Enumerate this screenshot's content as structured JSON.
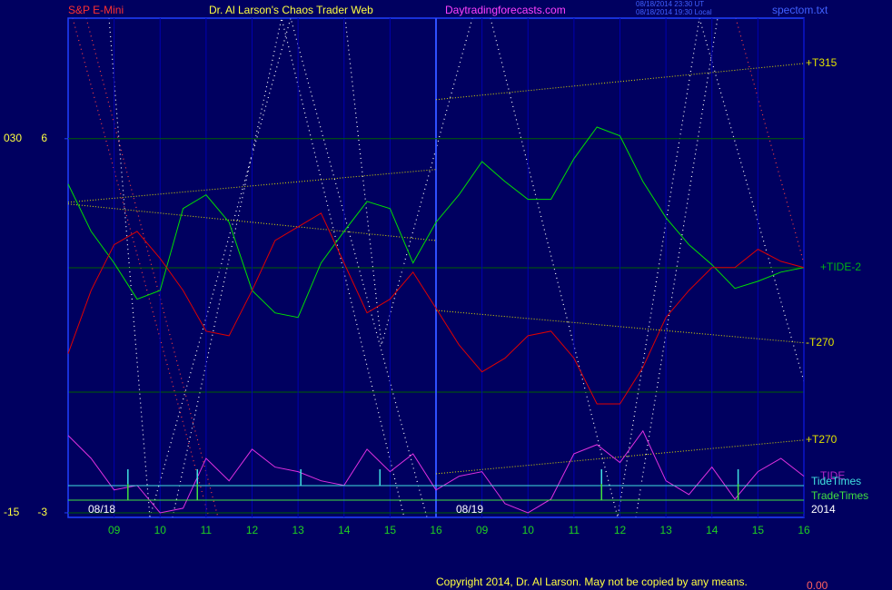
{
  "chart_data": {
    "type": "line",
    "header": {
      "symbol": "S&P E-Mini",
      "title": "Dr. Al Larson's Chaos Trader Web",
      "site": "Daytradingforecasts.com",
      "time_ut": "08/18/2014 23:30 UT",
      "time_local": "08/18/2014 19:30 Local",
      "file": "spectom.txt"
    },
    "copyright": "Copyright 2014, Dr. Al Larson. May not be copied by any means.",
    "footer_value": "0.00",
    "day_labels": [
      {
        "x": 0,
        "label": "08/18"
      },
      {
        "x": 8,
        "label": "08/19"
      }
    ],
    "year": "2014",
    "xlim": [
      0,
      16
    ],
    "xticks": [
      {
        "value": 1,
        "label": "09"
      },
      {
        "value": 2,
        "label": "10"
      },
      {
        "value": 3,
        "label": "11"
      },
      {
        "value": 4,
        "label": "12"
      },
      {
        "value": 5,
        "label": "13"
      },
      {
        "value": 6,
        "label": "14"
      },
      {
        "value": 7,
        "label": "15"
      },
      {
        "value": 8,
        "label": "16"
      },
      {
        "value": 9,
        "label": "09"
      },
      {
        "value": 10,
        "label": "10"
      },
      {
        "value": 11,
        "label": "11"
      },
      {
        "value": 12,
        "label": "12"
      },
      {
        "value": 13,
        "label": "13"
      },
      {
        "value": 14,
        "label": "14"
      },
      {
        "value": 15,
        "label": "15"
      },
      {
        "value": 16,
        "label": "16"
      }
    ],
    "ylim": [
      -3.11,
      8.9
    ],
    "yticks": [
      -3,
      6
    ],
    "y2lim": [
      -15.55,
      44.5
    ],
    "y2ticks": [
      -15,
      {
        "value": 30,
        "label": "030"
      }
    ],
    "grid": true,
    "x": [
      0,
      0.5,
      1,
      1.5,
      2,
      2.5,
      3,
      3.5,
      4,
      4.5,
      5,
      5.5,
      6,
      6.5,
      7,
      7.5,
      8,
      8.5,
      9,
      9.5,
      10,
      10.5,
      11,
      11.5,
      12,
      12.5,
      13,
      13.5,
      14,
      14.5,
      15,
      15.5,
      16
    ],
    "series": [
      {
        "name": "+TIDE-2",
        "color": "#00e000",
        "values": [
          4.91,
          3.77,
          3.01,
          2.14,
          2.35,
          4.32,
          4.65,
          3.99,
          2.35,
          1.81,
          1.7,
          3.01,
          3.77,
          4.49,
          4.32,
          3.01,
          3.99,
          4.65,
          5.45,
          4.97,
          4.54,
          4.54,
          5.52,
          6.28,
          6.07,
          4.97,
          4.1,
          3.45,
          2.97,
          2.4,
          2.57,
          2.79,
          2.9
        ]
      },
      {
        "color": "#e00000",
        "values": [
          0.83,
          2.35,
          3.45,
          3.77,
          3.12,
          2.35,
          1.37,
          1.26,
          2.35,
          3.55,
          3.88,
          4.21,
          3.01,
          1.81,
          2.14,
          2.79,
          1.92,
          1.04,
          0.39,
          0.72,
          1.26,
          1.37,
          0.72,
          -0.38,
          -0.38,
          0.5,
          1.7,
          2.35,
          2.9,
          2.9,
          3.34,
          3.05,
          2.9
        ]
      },
      {
        "name": "TIDE",
        "color": "#e030e0",
        "values": [
          -1.14,
          -1.69,
          -2.45,
          -2.34,
          -3.0,
          -2.89,
          -1.69,
          -2.23,
          -1.47,
          -1.9,
          -2.01,
          -2.23,
          -2.34,
          -1.47,
          -2.01,
          -1.58,
          -2.45,
          -2.12,
          -2.01,
          -2.78,
          -3.0,
          -2.67,
          -1.58,
          -1.36,
          -1.79,
          -1.03,
          -2.23,
          -2.56,
          -1.9,
          -2.67,
          -2.01,
          -1.69,
          -2.12
        ]
      }
    ],
    "trend_lines": [
      {
        "color": "#e0e000",
        "x": [
          0,
          8
        ],
        "values": [
          4.47,
          5.26
        ]
      },
      {
        "color": "#e0e000",
        "x": [
          0,
          8
        ],
        "values": [
          4.43,
          3.55
        ]
      },
      {
        "name": "+T315",
        "color": "#e0e000",
        "x": [
          8,
          16
        ],
        "values": [
          6.94,
          7.81
        ]
      },
      {
        "name": "-T270",
        "color": "#e0e000",
        "x": [
          8,
          16
        ],
        "values": [
          1.87,
          1.09
        ]
      },
      {
        "name": "+T270",
        "color": "#e0e000",
        "x": [
          8,
          16
        ],
        "values": [
          -2.06,
          -1.25
        ]
      }
    ],
    "time_markers": [
      {
        "name": "TideTimes",
        "color": "#40e0e0",
        "times": [
          1.3,
          2.81,
          5.06,
          6.78,
          11.6,
          14.57
        ]
      },
      {
        "name": "TradeTimes",
        "color": "#40e040",
        "times": [
          1.3,
          2.81,
          11.6,
          14.57
        ]
      }
    ]
  }
}
